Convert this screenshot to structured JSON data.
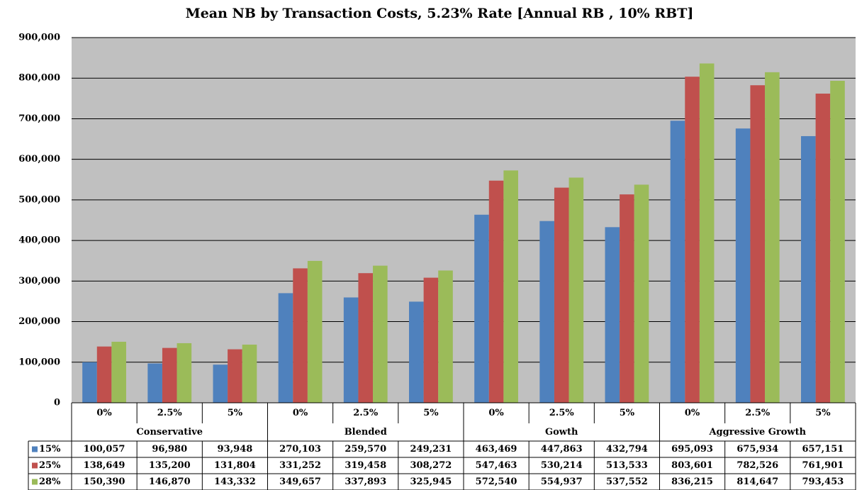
{
  "chart_data": {
    "type": "bar",
    "title": "Mean NB by Transaction Costs, 5.23% Rate [Annual RB , 10% RBT]",
    "groups": [
      {
        "name": "Conservative",
        "categories": [
          "0%",
          "2.5%",
          "5%"
        ]
      },
      {
        "name": "Blended",
        "categories": [
          "0%",
          "2.5%",
          "5%"
        ]
      },
      {
        "name": "Gowth",
        "categories": [
          "0%",
          "2.5%",
          "5%"
        ]
      },
      {
        "name": "Aggressive Growth",
        "categories": [
          "0%",
          "2.5%",
          "5%"
        ]
      }
    ],
    "series": [
      {
        "name": "15%",
        "color": "#4f81bd",
        "values": [
          100057,
          96980,
          93948,
          270103,
          259570,
          249231,
          463469,
          447863,
          432794,
          695093,
          675934,
          657151
        ],
        "value_labels": [
          "100,057",
          "96,980",
          "93,948",
          "270,103",
          "259,570",
          "249,231",
          "463,469",
          "447,863",
          "432,794",
          "695,093",
          "675,934",
          "657,151"
        ]
      },
      {
        "name": "25%",
        "color": "#c0504d",
        "values": [
          138649,
          135200,
          131804,
          331252,
          319458,
          308272,
          547463,
          530214,
          513533,
          803601,
          782526,
          761901
        ],
        "value_labels": [
          "138,649",
          "135,200",
          "131,804",
          "331,252",
          "319,458",
          "308,272",
          "547,463",
          "530,214",
          "513,533",
          "803,601",
          "782,526",
          "761,901"
        ]
      },
      {
        "name": "28%",
        "color": "#9bbb59",
        "values": [
          150390,
          146870,
          143332,
          349657,
          337893,
          325945,
          572540,
          554937,
          537552,
          836215,
          814647,
          793453
        ],
        "value_labels": [
          "150,390",
          "146,870",
          "143,332",
          "349,657",
          "337,893",
          "325,945",
          "572,540",
          "554,937",
          "537,552",
          "836,215",
          "814,647",
          "793,453"
        ]
      }
    ],
    "ylim": [
      0,
      900000
    ],
    "yticks": [
      0,
      {
        "value": 100000,
        "label": "100,000"
      },
      {
        "value": 200000,
        "label": "200,000"
      },
      {
        "value": 300000,
        "label": "300,000"
      },
      {
        "value": 400000,
        "label": "400,000"
      },
      {
        "value": 500000,
        "label": "500,000"
      },
      {
        "value": 600000,
        "label": "600,000"
      },
      {
        "value": 700000,
        "label": "700,000"
      },
      {
        "value": 800000,
        "label": "800,000"
      },
      {
        "value": 900000,
        "label": "900,000"
      }
    ],
    "grid": true,
    "plot_background": "#c0c0c0"
  }
}
